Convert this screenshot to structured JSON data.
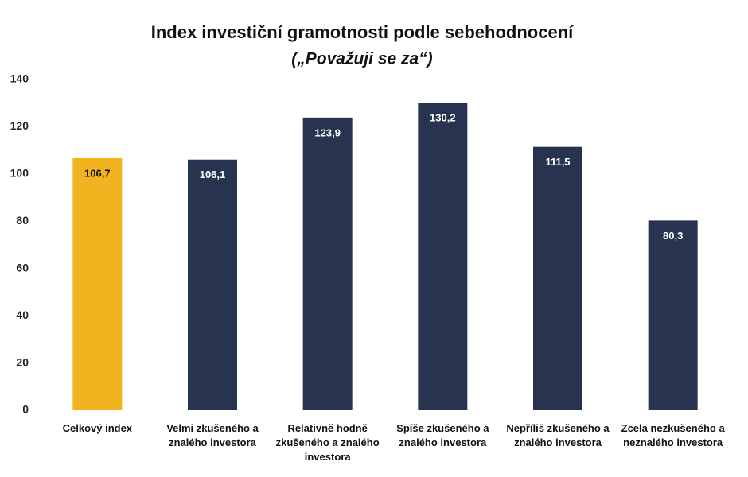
{
  "chart_data": {
    "type": "bar",
    "title": "Index investiční gramotnosti podle sebehodnocení",
    "subtitle": "(„Považuji se za“)",
    "categories": [
      "Celkový index",
      "Velmi zkušeného a znalého investora",
      "Relativně hodně zkušeného a znalého investora",
      "Spíše zkušeného a znalého investora",
      "Nepříliš zkušeného a znalého investora",
      "Zcela nezkušeného a neznalého investora"
    ],
    "values": [
      106.7,
      106.1,
      123.9,
      130.2,
      111.5,
      80.3
    ],
    "value_labels": [
      "106,7",
      "106,1",
      "123,9",
      "130,2",
      "111,5",
      "80,3"
    ],
    "colors": [
      "#f2b320",
      "#283350",
      "#283350",
      "#283350",
      "#283350",
      "#283350"
    ],
    "ylim": [
      0,
      140
    ],
    "yticks": [
      0,
      20,
      40,
      60,
      80,
      100,
      120,
      140
    ],
    "grid": false
  }
}
